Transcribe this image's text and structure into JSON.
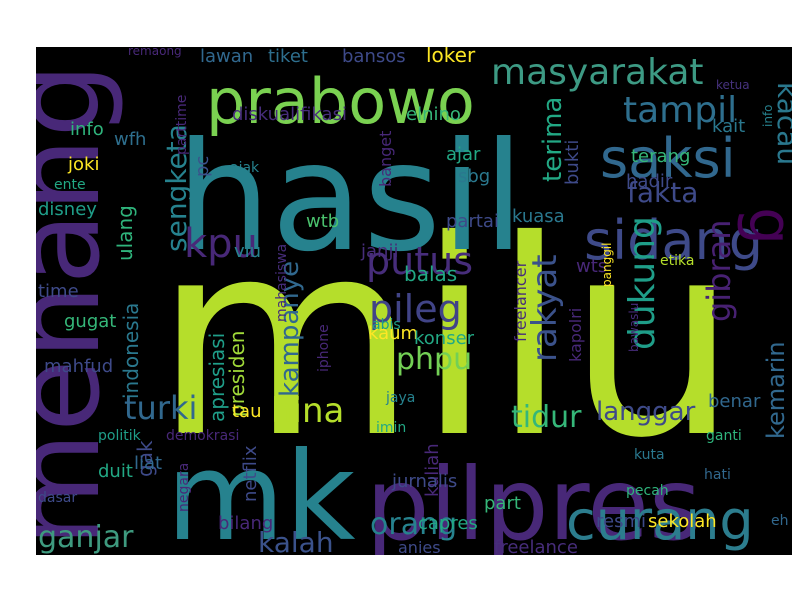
{
  "colors": {
    "background": "#000000",
    "lime": "#b5de2b",
    "green": "#35b779",
    "teal": "#26828e",
    "blue": "#3e4a89",
    "purple": "#482878",
    "yellow": "#fde725"
  },
  "words": [
    {
      "text": "milu",
      "color": "#b5de2b"
    },
    {
      "text": "hasil",
      "color": "#26828e"
    },
    {
      "text": "menang",
      "color": "#482878"
    },
    {
      "text": "mk",
      "color": "#26828e"
    },
    {
      "text": "pilpres",
      "color": "#482878"
    },
    {
      "text": "prabowo",
      "color": "#7ad151"
    },
    {
      "text": "saksi",
      "color": "#31688e"
    },
    {
      "text": "sidang",
      "color": "#3e4a89"
    },
    {
      "text": "curang",
      "color": "#2c7d8e"
    },
    {
      "text": "masyarakat",
      "color": "#3d9a84"
    },
    {
      "text": "g",
      "color": "#440154"
    },
    {
      "text": "kpu",
      "color": "#482878"
    },
    {
      "text": "putus",
      "color": "#472d7b"
    },
    {
      "text": "pileg",
      "color": "#414487"
    },
    {
      "text": "tampil",
      "color": "#2e6f8e"
    },
    {
      "text": "fakta",
      "color": "#3e4a89"
    },
    {
      "text": "kacau",
      "color": "#2a788e"
    },
    {
      "text": "sengketa",
      "color": "#26828e"
    },
    {
      "text": "rakyat",
      "color": "#3b528b"
    },
    {
      "text": "terima",
      "color": "#22a884"
    },
    {
      "text": "dukung",
      "color": "#1f9e89"
    },
    {
      "text": "gibran",
      "color": "#482173"
    },
    {
      "text": "kemarin",
      "color": "#31688e"
    },
    {
      "text": "phpu",
      "color": "#73d055"
    },
    {
      "text": "hina",
      "color": "#b5de2b"
    },
    {
      "text": "turki",
      "color": "#31688e"
    },
    {
      "text": "orang",
      "color": "#26828e"
    },
    {
      "text": "kalah",
      "color": "#3b528b"
    },
    {
      "text": "ganjar",
      "color": "#3e9a7f"
    },
    {
      "text": "tidur",
      "color": "#35b779"
    },
    {
      "text": "langgar",
      "color": "#3e4a89"
    },
    {
      "text": "kampanye",
      "color": "#31688e"
    },
    {
      "text": "indonesia",
      "color": "#2a788e"
    },
    {
      "text": "ulang",
      "color": "#2fb47c"
    },
    {
      "text": "presiden",
      "color": "#a0da39"
    },
    {
      "text": "apresiasi",
      "color": "#1f9e89"
    },
    {
      "text": "mahasiswa",
      "color": "#472d7b"
    },
    {
      "text": "gak",
      "color": "#3e4a89"
    },
    {
      "text": "loker",
      "color": "#fde725"
    },
    {
      "text": "lawan",
      "color": "#31688e"
    },
    {
      "text": "tiket",
      "color": "#2e6f8e"
    },
    {
      "text": "bansos",
      "color": "#3e4a89"
    },
    {
      "text": "remaong",
      "color": "#482878"
    },
    {
      "text": "parttime",
      "color": "#482878"
    },
    {
      "text": "diskualifikasi",
      "color": "#472d7b"
    },
    {
      "text": "elnino",
      "color": "#35b779"
    },
    {
      "text": "info",
      "color": "#2fb47c"
    },
    {
      "text": "wfh",
      "color": "#2e6f8e"
    },
    {
      "text": "joki",
      "color": "#fde725"
    },
    {
      "text": "ente",
      "color": "#22a884"
    },
    {
      "text": "disney",
      "color": "#1f9e89"
    },
    {
      "text": "pc",
      "color": "#3b528b"
    },
    {
      "text": "ajak",
      "color": "#26828e"
    },
    {
      "text": "ajar",
      "color": "#22a884"
    },
    {
      "text": "sbg",
      "color": "#2a788e"
    },
    {
      "text": "banget",
      "color": "#482878"
    },
    {
      "text": "bukti",
      "color": "#3e4a89"
    },
    {
      "text": "terang",
      "color": "#35b779"
    },
    {
      "text": "kait",
      "color": "#2a788e"
    },
    {
      "text": "hadir",
      "color": "#3e4a89"
    },
    {
      "text": "info",
      "color": "#26828e"
    },
    {
      "text": "kuasa",
      "color": "#2a788e"
    },
    {
      "text": "wtb",
      "color": "#4ac16d"
    },
    {
      "text": "partai",
      "color": "#3e4a89"
    },
    {
      "text": "viu",
      "color": "#26828e"
    },
    {
      "text": "janji",
      "color": "#472d7b"
    },
    {
      "text": "balas",
      "color": "#22a884"
    },
    {
      "text": "wts",
      "color": "#482878"
    },
    {
      "text": "panggil",
      "color": "#fde725"
    },
    {
      "text": "etika",
      "color": "#b5de2b"
    },
    {
      "text": "ketua",
      "color": "#46327e"
    },
    {
      "text": "time",
      "color": "#3e4a89"
    },
    {
      "text": "gugat",
      "color": "#35b779"
    },
    {
      "text": "mahfud",
      "color": "#3e4a89"
    },
    {
      "text": "iphone",
      "color": "#482878"
    },
    {
      "text": "kaum",
      "color": "#fde725"
    },
    {
      "text": "konser",
      "color": "#22a884"
    },
    {
      "text": "abis",
      "color": "#1f9e89"
    },
    {
      "text": "freelancer",
      "color": "#472d7b"
    },
    {
      "text": "kapolri",
      "color": "#482878"
    },
    {
      "text": "bawaslu",
      "color": "#472d7b"
    },
    {
      "text": "tau",
      "color": "#fde725"
    },
    {
      "text": "jaya",
      "color": "#26828e"
    },
    {
      "text": "imin",
      "color": "#22a884"
    },
    {
      "text": "benar",
      "color": "#31688e"
    },
    {
      "text": "politik",
      "color": "#1f9e89"
    },
    {
      "text": "demokrasi",
      "color": "#482878"
    },
    {
      "text": "ganti",
      "color": "#2fb47c"
    },
    {
      "text": "liat",
      "color": "#31688e"
    },
    {
      "text": "netflix",
      "color": "#3e4a89"
    },
    {
      "text": "duit",
      "color": "#22a884"
    },
    {
      "text": "kuliah",
      "color": "#482878"
    },
    {
      "text": "kuta",
      "color": "#2a788e"
    },
    {
      "text": "hati",
      "color": "#31688e"
    },
    {
      "text": "negara",
      "color": "#482878"
    },
    {
      "text": "jurnalis",
      "color": "#3e4a89"
    },
    {
      "text": "part",
      "color": "#35b779"
    },
    {
      "text": "pecah",
      "color": "#2fb47c"
    },
    {
      "text": "dasar",
      "color": "#3e4a89"
    },
    {
      "text": "bilang",
      "color": "#482878"
    },
    {
      "text": "anies",
      "color": "#3e4a89"
    },
    {
      "text": "capres",
      "color": "#22a884"
    },
    {
      "text": "freelance",
      "color": "#472d7b"
    },
    {
      "text": "resmi",
      "color": "#3e4a89"
    },
    {
      "text": "sekolah",
      "color": "#fde725"
    },
    {
      "text": "eh",
      "color": "#31688e"
    }
  ]
}
